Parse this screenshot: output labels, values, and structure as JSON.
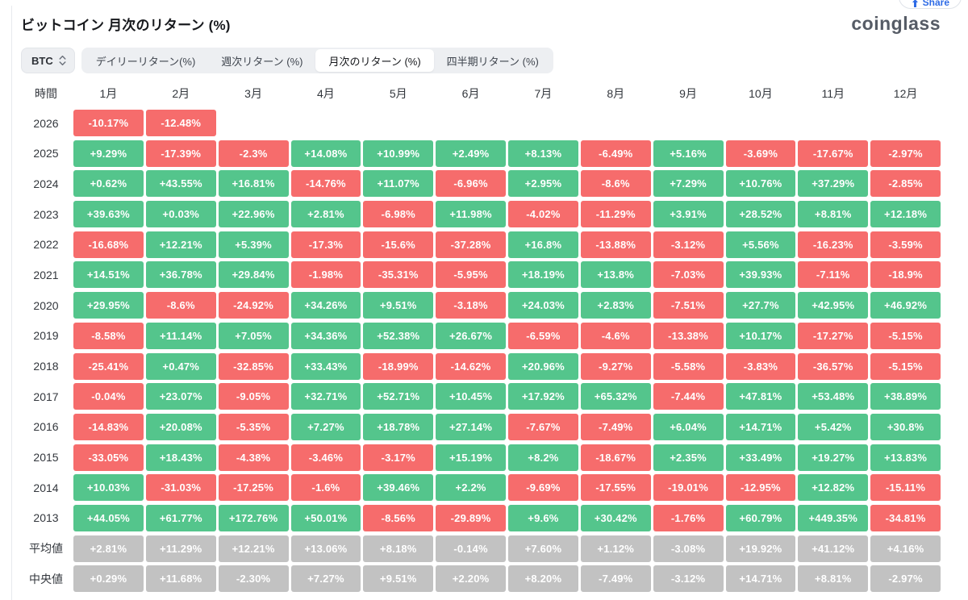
{
  "header": {
    "title": "ビットコイン 月次のリターン (%)",
    "logo": "coinglass",
    "share_label": "Share"
  },
  "controls": {
    "coin_select": {
      "value": "BTC"
    },
    "tabs": [
      {
        "label": "デイリーリターン(%)",
        "active": false
      },
      {
        "label": "週次リターン (%)",
        "active": false
      },
      {
        "label": "月次のリターン (%)",
        "active": true
      },
      {
        "label": "四半期リターン (%)",
        "active": false
      }
    ]
  },
  "colors": {
    "positive": "#54c58c",
    "negative": "#f66c6c",
    "summary": "#c2c2c2"
  },
  "chart_data": {
    "type": "heatmap",
    "title": "ビットコイン 月次のリターン (%)",
    "row_header": "時間",
    "columns": [
      "1月",
      "2月",
      "3月",
      "4月",
      "5月",
      "6月",
      "7月",
      "8月",
      "9月",
      "10月",
      "11月",
      "12月"
    ],
    "rows": [
      {
        "label": "2026",
        "type": "year",
        "values": [
          "-10.17%",
          "-12.48%",
          "",
          "",
          "",
          "",
          "",
          "",
          "",
          "",
          "",
          ""
        ]
      },
      {
        "label": "2025",
        "type": "year",
        "values": [
          "+9.29%",
          "-17.39%",
          "-2.3%",
          "+14.08%",
          "+10.99%",
          "+2.49%",
          "+8.13%",
          "-6.49%",
          "+5.16%",
          "-3.69%",
          "-17.67%",
          "-2.97%"
        ]
      },
      {
        "label": "2024",
        "type": "year",
        "values": [
          "+0.62%",
          "+43.55%",
          "+16.81%",
          "-14.76%",
          "+11.07%",
          "-6.96%",
          "+2.95%",
          "-8.6%",
          "+7.29%",
          "+10.76%",
          "+37.29%",
          "-2.85%"
        ]
      },
      {
        "label": "2023",
        "type": "year",
        "values": [
          "+39.63%",
          "+0.03%",
          "+22.96%",
          "+2.81%",
          "-6.98%",
          "+11.98%",
          "-4.02%",
          "-11.29%",
          "+3.91%",
          "+28.52%",
          "+8.81%",
          "+12.18%"
        ]
      },
      {
        "label": "2022",
        "type": "year",
        "values": [
          "-16.68%",
          "+12.21%",
          "+5.39%",
          "-17.3%",
          "-15.6%",
          "-37.28%",
          "+16.8%",
          "-13.88%",
          "-3.12%",
          "+5.56%",
          "-16.23%",
          "-3.59%"
        ]
      },
      {
        "label": "2021",
        "type": "year",
        "values": [
          "+14.51%",
          "+36.78%",
          "+29.84%",
          "-1.98%",
          "-35.31%",
          "-5.95%",
          "+18.19%",
          "+13.8%",
          "-7.03%",
          "+39.93%",
          "-7.11%",
          "-18.9%"
        ]
      },
      {
        "label": "2020",
        "type": "year",
        "values": [
          "+29.95%",
          "-8.6%",
          "-24.92%",
          "+34.26%",
          "+9.51%",
          "-3.18%",
          "+24.03%",
          "+2.83%",
          "-7.51%",
          "+27.7%",
          "+42.95%",
          "+46.92%"
        ]
      },
      {
        "label": "2019",
        "type": "year",
        "values": [
          "-8.58%",
          "+11.14%",
          "+7.05%",
          "+34.36%",
          "+52.38%",
          "+26.67%",
          "-6.59%",
          "-4.6%",
          "-13.38%",
          "+10.17%",
          "-17.27%",
          "-5.15%"
        ]
      },
      {
        "label": "2018",
        "type": "year",
        "values": [
          "-25.41%",
          "+0.47%",
          "-32.85%",
          "+33.43%",
          "-18.99%",
          "-14.62%",
          "+20.96%",
          "-9.27%",
          "-5.58%",
          "-3.83%",
          "-36.57%",
          "-5.15%"
        ]
      },
      {
        "label": "2017",
        "type": "year",
        "values": [
          "-0.04%",
          "+23.07%",
          "-9.05%",
          "+32.71%",
          "+52.71%",
          "+10.45%",
          "+17.92%",
          "+65.32%",
          "-7.44%",
          "+47.81%",
          "+53.48%",
          "+38.89%"
        ]
      },
      {
        "label": "2016",
        "type": "year",
        "values": [
          "-14.83%",
          "+20.08%",
          "-5.35%",
          "+7.27%",
          "+18.78%",
          "+27.14%",
          "-7.67%",
          "-7.49%",
          "+6.04%",
          "+14.71%",
          "+5.42%",
          "+30.8%"
        ]
      },
      {
        "label": "2015",
        "type": "year",
        "values": [
          "-33.05%",
          "+18.43%",
          "-4.38%",
          "-3.46%",
          "-3.17%",
          "+15.19%",
          "+8.2%",
          "-18.67%",
          "+2.35%",
          "+33.49%",
          "+19.27%",
          "+13.83%"
        ]
      },
      {
        "label": "2014",
        "type": "year",
        "values": [
          "+10.03%",
          "-31.03%",
          "-17.25%",
          "-1.6%",
          "+39.46%",
          "+2.2%",
          "-9.69%",
          "-17.55%",
          "-19.01%",
          "-12.95%",
          "+12.82%",
          "-15.11%"
        ]
      },
      {
        "label": "2013",
        "type": "year",
        "values": [
          "+44.05%",
          "+61.77%",
          "+172.76%",
          "+50.01%",
          "-8.56%",
          "-29.89%",
          "+9.6%",
          "+30.42%",
          "-1.76%",
          "+60.79%",
          "+449.35%",
          "-34.81%"
        ]
      },
      {
        "label": "平均値",
        "type": "summary",
        "values": [
          "+2.81%",
          "+11.29%",
          "+12.21%",
          "+13.06%",
          "+8.18%",
          "-0.14%",
          "+7.60%",
          "+1.12%",
          "-3.08%",
          "+19.92%",
          "+41.12%",
          "+4.16%"
        ]
      },
      {
        "label": "中央値",
        "type": "summary",
        "values": [
          "+0.29%",
          "+11.68%",
          "-2.30%",
          "+7.27%",
          "+9.51%",
          "+2.20%",
          "+8.20%",
          "-7.49%",
          "-3.12%",
          "+14.71%",
          "+8.81%",
          "-2.97%"
        ]
      }
    ]
  }
}
